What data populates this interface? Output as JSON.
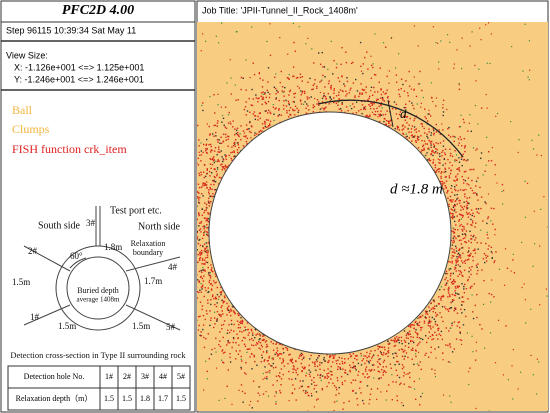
{
  "header": {
    "title": "PFC2D 4.00",
    "step": "Step 96115  10:39:34 Sat May 11"
  },
  "view": {
    "label": "View Size:",
    "x": "X: -1.126e+001 <=> 1.125e+001",
    "y": "Y: -1.246e+001 <=> 1.246e+001"
  },
  "legend": [
    "Ball",
    "Clumps",
    "FISH function crk_item"
  ],
  "diagram": {
    "test_port": "Test port  etc.",
    "south": "South side",
    "north": "North side",
    "holes": [
      "1#",
      "2#",
      "3#",
      "4#",
      "5#"
    ],
    "angle": "60°",
    "depth_3": "1.8m",
    "relaxation": [
      "Relaxation",
      "boundary"
    ],
    "depth_2": "1.5m",
    "depth_4": "1.7m",
    "buried": [
      "Buried depth",
      "average 1408m"
    ],
    "depth_1": "1.5m",
    "depth_5": "1.5m"
  },
  "table": {
    "caption": "Detection cross-section  in Type II surrounding rock",
    "rows": [
      [
        "Detection hole No.",
        "1#",
        "2#",
        "3#",
        "4#",
        "5#"
      ],
      [
        "Relaxation depth（m）",
        1.5,
        1.5,
        1.8,
        1.7,
        1.5
      ]
    ]
  },
  "plot": {
    "job_title": "Job Title: 'JPII-Tunnel_II_Rock_1408m'",
    "d_label": "d",
    "diameter_label": "d ≈1.8 m"
  }
}
